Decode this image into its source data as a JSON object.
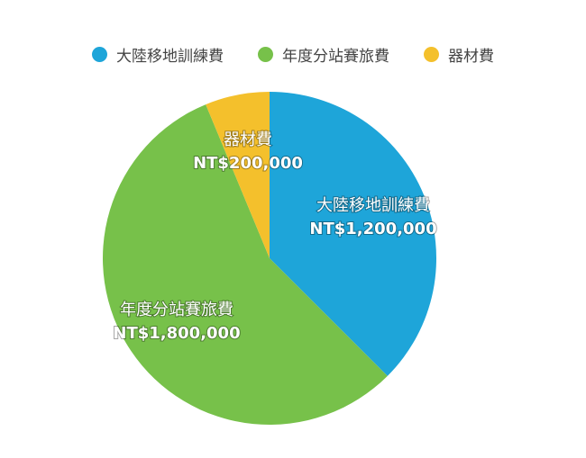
{
  "chart_data": {
    "type": "pie",
    "legend_position": "top",
    "series": [
      {
        "name": "大陸移地訓練費",
        "label": "NT$1,200,000",
        "value": 1200000,
        "color": "#1ea5d9"
      },
      {
        "name": "年度分站賽旅費",
        "label": "NT$1,800,000",
        "value": 1800000,
        "color": "#77c14a"
      },
      {
        "name": "器材費",
        "label": "NT$200,000",
        "value": 200000,
        "color": "#f4c02c"
      }
    ]
  }
}
